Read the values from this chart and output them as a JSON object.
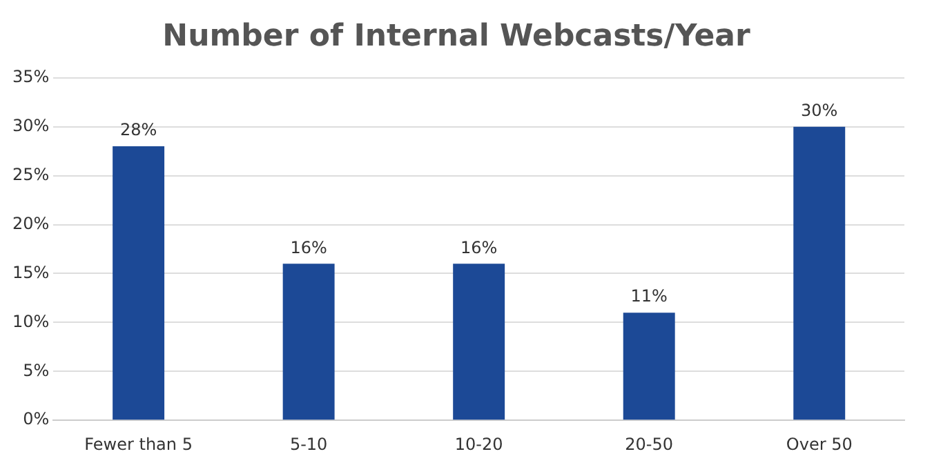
{
  "chart_data": {
    "type": "bar",
    "title": "Number of Internal Webcasts/Year",
    "categories": [
      "Fewer than 5",
      "5-10",
      "10-20",
      "20-50",
      "Over 50"
    ],
    "values": [
      28,
      16,
      16,
      11,
      30
    ],
    "color": "#1c4996",
    "ylim": [
      0,
      35
    ],
    "yticks": [
      {
        "value": 0,
        "label": "0%"
      },
      {
        "value": 5,
        "label": "5%"
      },
      {
        "value": 10,
        "label": "10%"
      },
      {
        "value": 15,
        "label": "15%"
      },
      {
        "value": 20,
        "label": "20%"
      },
      {
        "value": 25,
        "label": "25%"
      },
      {
        "value": 30,
        "label": "30%"
      },
      {
        "value": 35,
        "label": "35%"
      }
    ],
    "value_labels": [
      "28%",
      "16%",
      "16%",
      "11%",
      "30%"
    ],
    "grid": "y",
    "legend": false
  }
}
